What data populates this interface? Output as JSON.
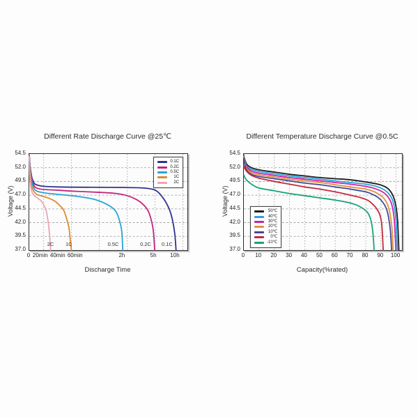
{
  "page": {
    "background": "#fdfdfd",
    "grid_color": "#999999",
    "frame_color": "#2b2b2b"
  },
  "chart_data": [
    {
      "type": "line",
      "title": "Different Rate Discharge Curve @25℃",
      "xlabel": "Discharge Time",
      "ylabel": "Voltage (V)",
      "ylim": [
        37.0,
        54.5
      ],
      "y_ticks": [
        "54.5",
        "52.0",
        "49.5",
        "47.0",
        "44.5",
        "42.0",
        "39.5",
        "37.0"
      ],
      "x_unit": "minutes",
      "x_ticks": [
        {
          "label": "0",
          "value": 0,
          "pos": 0
        },
        {
          "label": "20min",
          "value": 20,
          "pos": 0.074
        },
        {
          "label": "40min",
          "value": 40,
          "pos": 0.184
        },
        {
          "label": "60min",
          "value": 60,
          "pos": 0.294
        },
        {
          "label": "2h",
          "value": 120,
          "pos": 0.59
        },
        {
          "label": "5h",
          "value": 300,
          "pos": 0.789
        },
        {
          "label": "10h",
          "value": 600,
          "pos": 0.925
        }
      ],
      "grid_x_pos": [
        0.091,
        0.267,
        0.443,
        0.62,
        0.796,
        0.972
      ],
      "legend": {
        "position": "top-right",
        "entries": [
          {
            "label": "0.1C",
            "color": "#32328f"
          },
          {
            "label": "0.2C",
            "color": "#c2257f"
          },
          {
            "label": "0.5C",
            "color": "#29a3d4"
          },
          {
            "label": "1C",
            "color": "#d98a33"
          },
          {
            "label": "2C",
            "color": "#eba6b3"
          }
        ]
      },
      "annotations": [
        {
          "text": "2C",
          "x": 31,
          "v": 38.1
        },
        {
          "text": "1C",
          "x": 52,
          "v": 38.1
        },
        {
          "text": "0.5C",
          "x": 108,
          "v": 38.1
        },
        {
          "text": "0.2C",
          "x": 252,
          "v": 38.1
        },
        {
          "text": "0.1C",
          "x": 483,
          "v": 38.1
        }
      ],
      "series": [
        {
          "name": "0.1C",
          "color": "#32328f",
          "points": [
            [
              0,
              54.3
            ],
            [
              2,
              51.8
            ],
            [
              6,
              49.7
            ],
            [
              15,
              48.8
            ],
            [
              40,
              48.5
            ],
            [
              120,
              48.4
            ],
            [
              240,
              48.3
            ],
            [
              300,
              48.0
            ],
            [
              360,
              47.5
            ],
            [
              420,
              46.6
            ],
            [
              470,
              45.6
            ],
            [
              520,
              44.2
            ],
            [
              560,
              42.3
            ],
            [
              590,
              39.9
            ],
            [
              607,
              37.0
            ]
          ]
        },
        {
          "name": "0.2C",
          "color": "#c2257f",
          "points": [
            [
              0,
              54.3
            ],
            [
              2,
              51.5
            ],
            [
              6,
              49.3
            ],
            [
              15,
              48.2
            ],
            [
              40,
              47.9
            ],
            [
              61,
              47.7
            ],
            [
              92,
              47.5
            ],
            [
              112,
              47.3
            ],
            [
              147,
              46.9
            ],
            [
              200,
              46.2
            ],
            [
              238,
              45.3
            ],
            [
              265,
              44.2
            ],
            [
              283,
              42.6
            ],
            [
              296,
              40.5
            ],
            [
              309,
              37.0
            ]
          ]
        },
        {
          "name": "0.5C",
          "color": "#29a3d4",
          "points": [
            [
              0,
              54.2
            ],
            [
              2,
              51.0
            ],
            [
              6,
              48.8
            ],
            [
              12,
              47.8
            ],
            [
              25,
              47.4
            ],
            [
              43,
              47.1
            ],
            [
              61,
              46.8
            ],
            [
              82,
              46.3
            ],
            [
              96,
              45.6
            ],
            [
              106,
              44.8
            ],
            [
              112,
              43.9
            ],
            [
              116,
              42.4
            ],
            [
              119,
              40.4
            ],
            [
              121,
              37.0
            ]
          ]
        },
        {
          "name": "1C",
          "color": "#d98a33",
          "points": [
            [
              0,
              54.1
            ],
            [
              1.5,
              50.8
            ],
            [
              5,
              48.3
            ],
            [
              12,
              47.2
            ],
            [
              20,
              46.9
            ],
            [
              28,
              46.5
            ],
            [
              36,
              45.9
            ],
            [
              41,
              45.2
            ],
            [
              46,
              44.3
            ],
            [
              49,
              43.0
            ],
            [
              52,
              41.2
            ],
            [
              53.5,
              39.2
            ],
            [
              55,
              37.0
            ]
          ]
        },
        {
          "name": "2C",
          "color": "#eba6b3",
          "points": [
            [
              0,
              53.9
            ],
            [
              1,
              50.2
            ],
            [
              4,
              47.8
            ],
            [
              8,
              47.0
            ],
            [
              15,
              46.4
            ],
            [
              20,
              46.0
            ],
            [
              23,
              45.3
            ],
            [
              26,
              44.2
            ],
            [
              27.5,
              42.9
            ],
            [
              29,
              41.2
            ],
            [
              30.2,
              39.2
            ],
            [
              31,
              37.0
            ]
          ]
        }
      ]
    },
    {
      "type": "line",
      "title": "Different Temperature Discharge Curve @0.5C",
      "xlabel": "Capacity(%rated)",
      "ylabel": "Voltage (V)",
      "ylim": [
        37.0,
        54.5
      ],
      "y_ticks": [
        "54.5",
        "52.0",
        "49.5",
        "47.0",
        "44.5",
        "42.0",
        "39.5",
        "37.0"
      ],
      "x_unit": "percent",
      "x_ticks": [
        {
          "label": "0",
          "value": 0,
          "pos": 0
        },
        {
          "label": "10",
          "value": 10,
          "pos": 0.096
        },
        {
          "label": "20",
          "value": 20,
          "pos": 0.193
        },
        {
          "label": "30",
          "value": 30,
          "pos": 0.289
        },
        {
          "label": "40",
          "value": 40,
          "pos": 0.385
        },
        {
          "label": "50",
          "value": 50,
          "pos": 0.482
        },
        {
          "label": "60",
          "value": 60,
          "pos": 0.578
        },
        {
          "label": "70",
          "value": 70,
          "pos": 0.674
        },
        {
          "label": "80",
          "value": 80,
          "pos": 0.771
        },
        {
          "label": "90",
          "value": 90,
          "pos": 0.867
        },
        {
          "label": "100",
          "value": 100,
          "pos": 0.963
        }
      ],
      "legend": {
        "position": "mid-left",
        "entries": [
          {
            "label": "50℃",
            "color": "#1c1c1c"
          },
          {
            "label": "40℃",
            "color": "#2ba3d8"
          },
          {
            "label": "30℃",
            "color": "#cb22a9"
          },
          {
            "label": "20℃",
            "color": "#e2913f"
          },
          {
            "label": "10℃",
            "color": "#3f4a97"
          },
          {
            "label": "0℃",
            "color": "#c32b3c"
          },
          {
            "label": "-10℃",
            "color": "#16a379"
          }
        ]
      },
      "annotations": [],
      "series": [
        {
          "name": "50℃",
          "color": "#1c1c1c",
          "points": [
            [
              0,
              54.3
            ],
            [
              0.5,
              53.6
            ],
            [
              2,
              52.6
            ],
            [
              5,
              52.0
            ],
            [
              10,
              51.6
            ],
            [
              20,
              51.2
            ],
            [
              30,
              50.8
            ],
            [
              40,
              50.5
            ],
            [
              50,
              50.2
            ],
            [
              60,
              50.0
            ],
            [
              70,
              49.8
            ],
            [
              80,
              49.4
            ],
            [
              88,
              49.0
            ],
            [
              93,
              48.5
            ],
            [
              96,
              47.8
            ],
            [
              98.5,
              46.5
            ],
            [
              100,
              44.8
            ],
            [
              101,
              42.3
            ],
            [
              101.8,
              37.0
            ]
          ]
        },
        {
          "name": "40℃",
          "color": "#2ba3d8",
          "points": [
            [
              0,
              54.2
            ],
            [
              0.5,
              53.4
            ],
            [
              2,
              52.3
            ],
            [
              5,
              51.7
            ],
            [
              10,
              51.3
            ],
            [
              20,
              50.9
            ],
            [
              30,
              50.5
            ],
            [
              40,
              50.2
            ],
            [
              50,
              49.9
            ],
            [
              60,
              49.6
            ],
            [
              70,
              49.3
            ],
            [
              80,
              49.0
            ],
            [
              87,
              48.6
            ],
            [
              92,
              48.0
            ],
            [
              95,
              47.3
            ],
            [
              97.5,
              46.2
            ],
            [
              99,
              44.6
            ],
            [
              100,
              42.2
            ],
            [
              100.8,
              37.0
            ]
          ]
        },
        {
          "name": "30℃",
          "color": "#cb22a9",
          "points": [
            [
              0,
              54.1
            ],
            [
              0.5,
              53.2
            ],
            [
              2,
              52.1
            ],
            [
              5,
              51.4
            ],
            [
              10,
              51.0
            ],
            [
              20,
              50.6
            ],
            [
              30,
              50.2
            ],
            [
              40,
              49.9
            ],
            [
              50,
              49.6
            ],
            [
              60,
              49.3
            ],
            [
              70,
              49.0
            ],
            [
              80,
              48.6
            ],
            [
              86,
              48.2
            ],
            [
              91,
              47.6
            ],
            [
              94,
              46.9
            ],
            [
              96.5,
              45.8
            ],
            [
              98,
              44.2
            ],
            [
              99,
              41.8
            ],
            [
              99.8,
              37.0
            ]
          ]
        },
        {
          "name": "20℃",
          "color": "#e2913f",
          "points": [
            [
              0,
              54.0
            ],
            [
              0.5,
              53.0
            ],
            [
              2,
              51.8
            ],
            [
              5,
              51.1
            ],
            [
              10,
              50.7
            ],
            [
              20,
              50.3
            ],
            [
              30,
              49.9
            ],
            [
              40,
              49.6
            ],
            [
              50,
              49.3
            ],
            [
              60,
              48.9
            ],
            [
              70,
              48.5
            ],
            [
              80,
              48.1
            ],
            [
              85,
              47.7
            ],
            [
              89,
              47.1
            ],
            [
              92,
              46.4
            ],
            [
              94.5,
              45.2
            ],
            [
              96,
              43.6
            ],
            [
              97.2,
              41.2
            ],
            [
              98,
              37.0
            ]
          ]
        },
        {
          "name": "10℃",
          "color": "#3f4a97",
          "points": [
            [
              0,
              53.8
            ],
            [
              0.5,
              52.7
            ],
            [
              2,
              51.5
            ],
            [
              5,
              50.8
            ],
            [
              10,
              50.4
            ],
            [
              20,
              50.0
            ],
            [
              30,
              49.6
            ],
            [
              40,
              49.2
            ],
            [
              50,
              48.9
            ],
            [
              60,
              48.5
            ],
            [
              70,
              48.1
            ],
            [
              80,
              47.6
            ],
            [
              84,
              47.2
            ],
            [
              88,
              46.6
            ],
            [
              91,
              45.8
            ],
            [
              93.5,
              44.6
            ],
            [
              95,
              43.0
            ],
            [
              96.2,
              40.6
            ],
            [
              97,
              37.0
            ]
          ]
        },
        {
          "name": "0℃",
          "color": "#c32b3c",
          "points": [
            [
              0,
              52.3
            ],
            [
              0.5,
              51.9
            ],
            [
              2,
              51.3
            ],
            [
              5,
              50.6
            ],
            [
              10,
              50.1
            ],
            [
              20,
              49.5
            ],
            [
              30,
              49.0
            ],
            [
              40,
              48.5
            ],
            [
              50,
              48.1
            ],
            [
              60,
              47.6
            ],
            [
              70,
              47.0
            ],
            [
              76,
              46.6
            ],
            [
              81,
              46.1
            ],
            [
              84,
              45.5
            ],
            [
              87,
              44.6
            ],
            [
              89.3,
              43.4
            ],
            [
              90.6,
              41.5
            ],
            [
              91.5,
              37.0
            ]
          ]
        },
        {
          "name": "-10℃",
          "color": "#16a379",
          "points": [
            [
              0,
              50.7
            ],
            [
              0.5,
              50.3
            ],
            [
              2,
              49.7
            ],
            [
              5,
              49.0
            ],
            [
              10,
              48.3
            ],
            [
              20,
              47.8
            ],
            [
              30,
              47.3
            ],
            [
              40,
              46.9
            ],
            [
              50,
              46.5
            ],
            [
              60,
              46.1
            ],
            [
              68,
              45.7
            ],
            [
              74,
              45.2
            ],
            [
              78,
              44.6
            ],
            [
              81,
              43.9
            ],
            [
              83,
              42.8
            ],
            [
              84.2,
              41.3
            ],
            [
              85,
              39.2
            ],
            [
              85.5,
              37.0
            ]
          ]
        }
      ]
    }
  ]
}
